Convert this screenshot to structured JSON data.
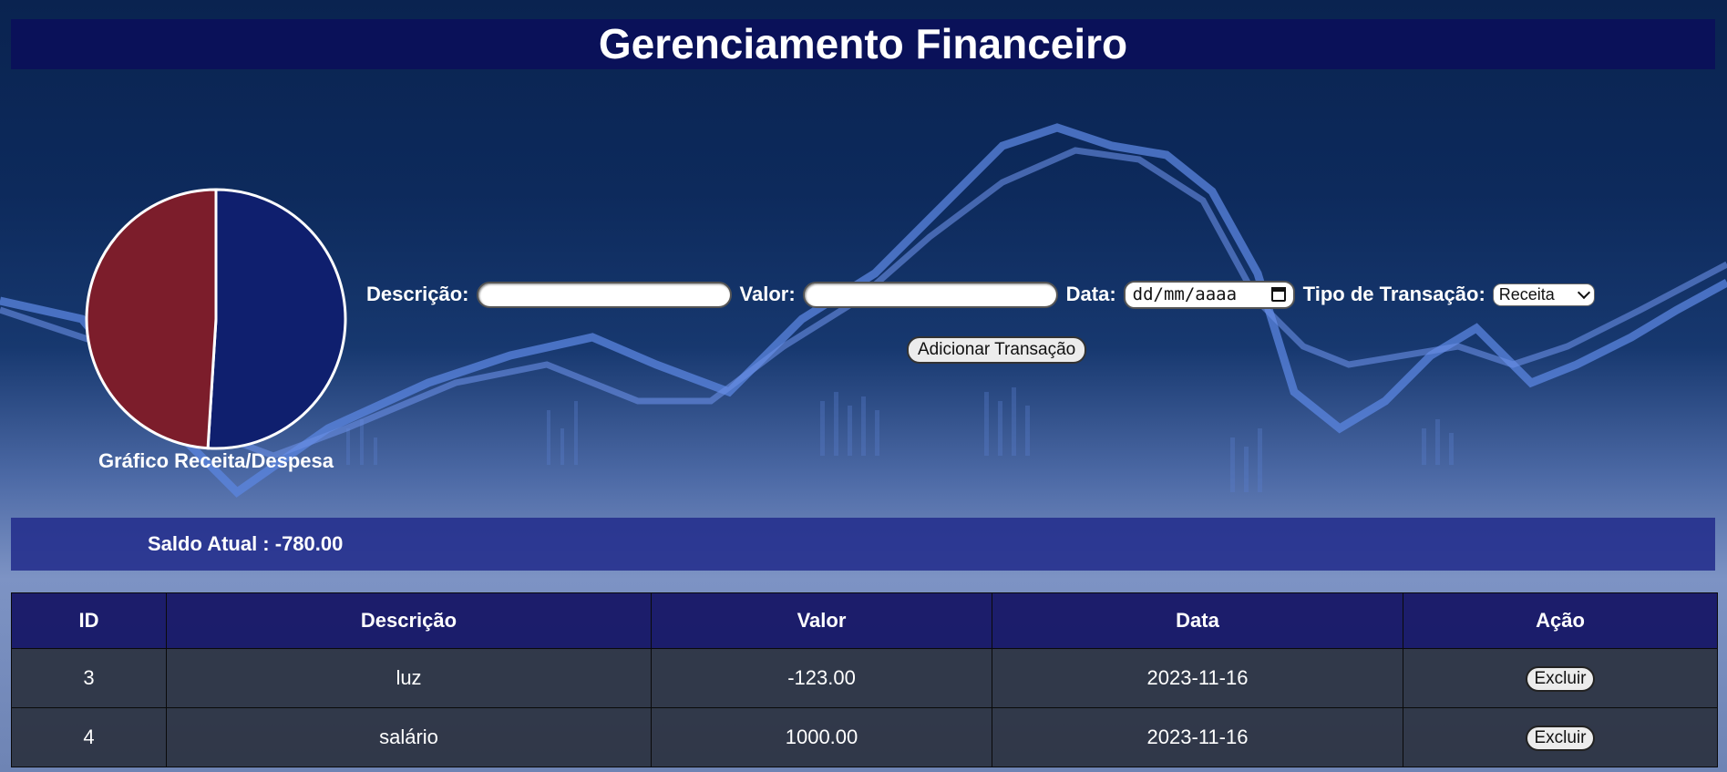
{
  "header": {
    "title": "Gerenciamento Financeiro"
  },
  "chart_data": {
    "type": "pie",
    "title": "Gráfico Receita/Despesa",
    "slices": [
      {
        "label": "",
        "value": 51,
        "color": "#0f1f6e"
      },
      {
        "label": "",
        "value": 49,
        "color": "#7c1d2b"
      }
    ]
  },
  "form": {
    "descricao_label": "Descrição:",
    "valor_label": "Valor:",
    "data_label": "Data:",
    "data_placeholder": "dd/mm/aaaa",
    "tipo_label": "Tipo de Transação:",
    "tipo_selected": "Receita",
    "submit_label": "Adicionar Transação"
  },
  "balance": {
    "text": "Saldo Atual : -780.00"
  },
  "table": {
    "headers": [
      "ID",
      "Descrição",
      "Valor",
      "Data",
      "Ação"
    ],
    "rows": [
      {
        "id": "3",
        "descricao": "luz",
        "valor": "-123.00",
        "data": "2023-11-16",
        "acao": "Excluir"
      },
      {
        "id": "4",
        "descricao": "salário",
        "valor": "1000.00",
        "data": "2023-11-16",
        "acao": "Excluir"
      }
    ]
  },
  "colors": {
    "header_bg": "#0a105a",
    "expense": "#7c1d2b",
    "income": "#0f1f6e"
  }
}
